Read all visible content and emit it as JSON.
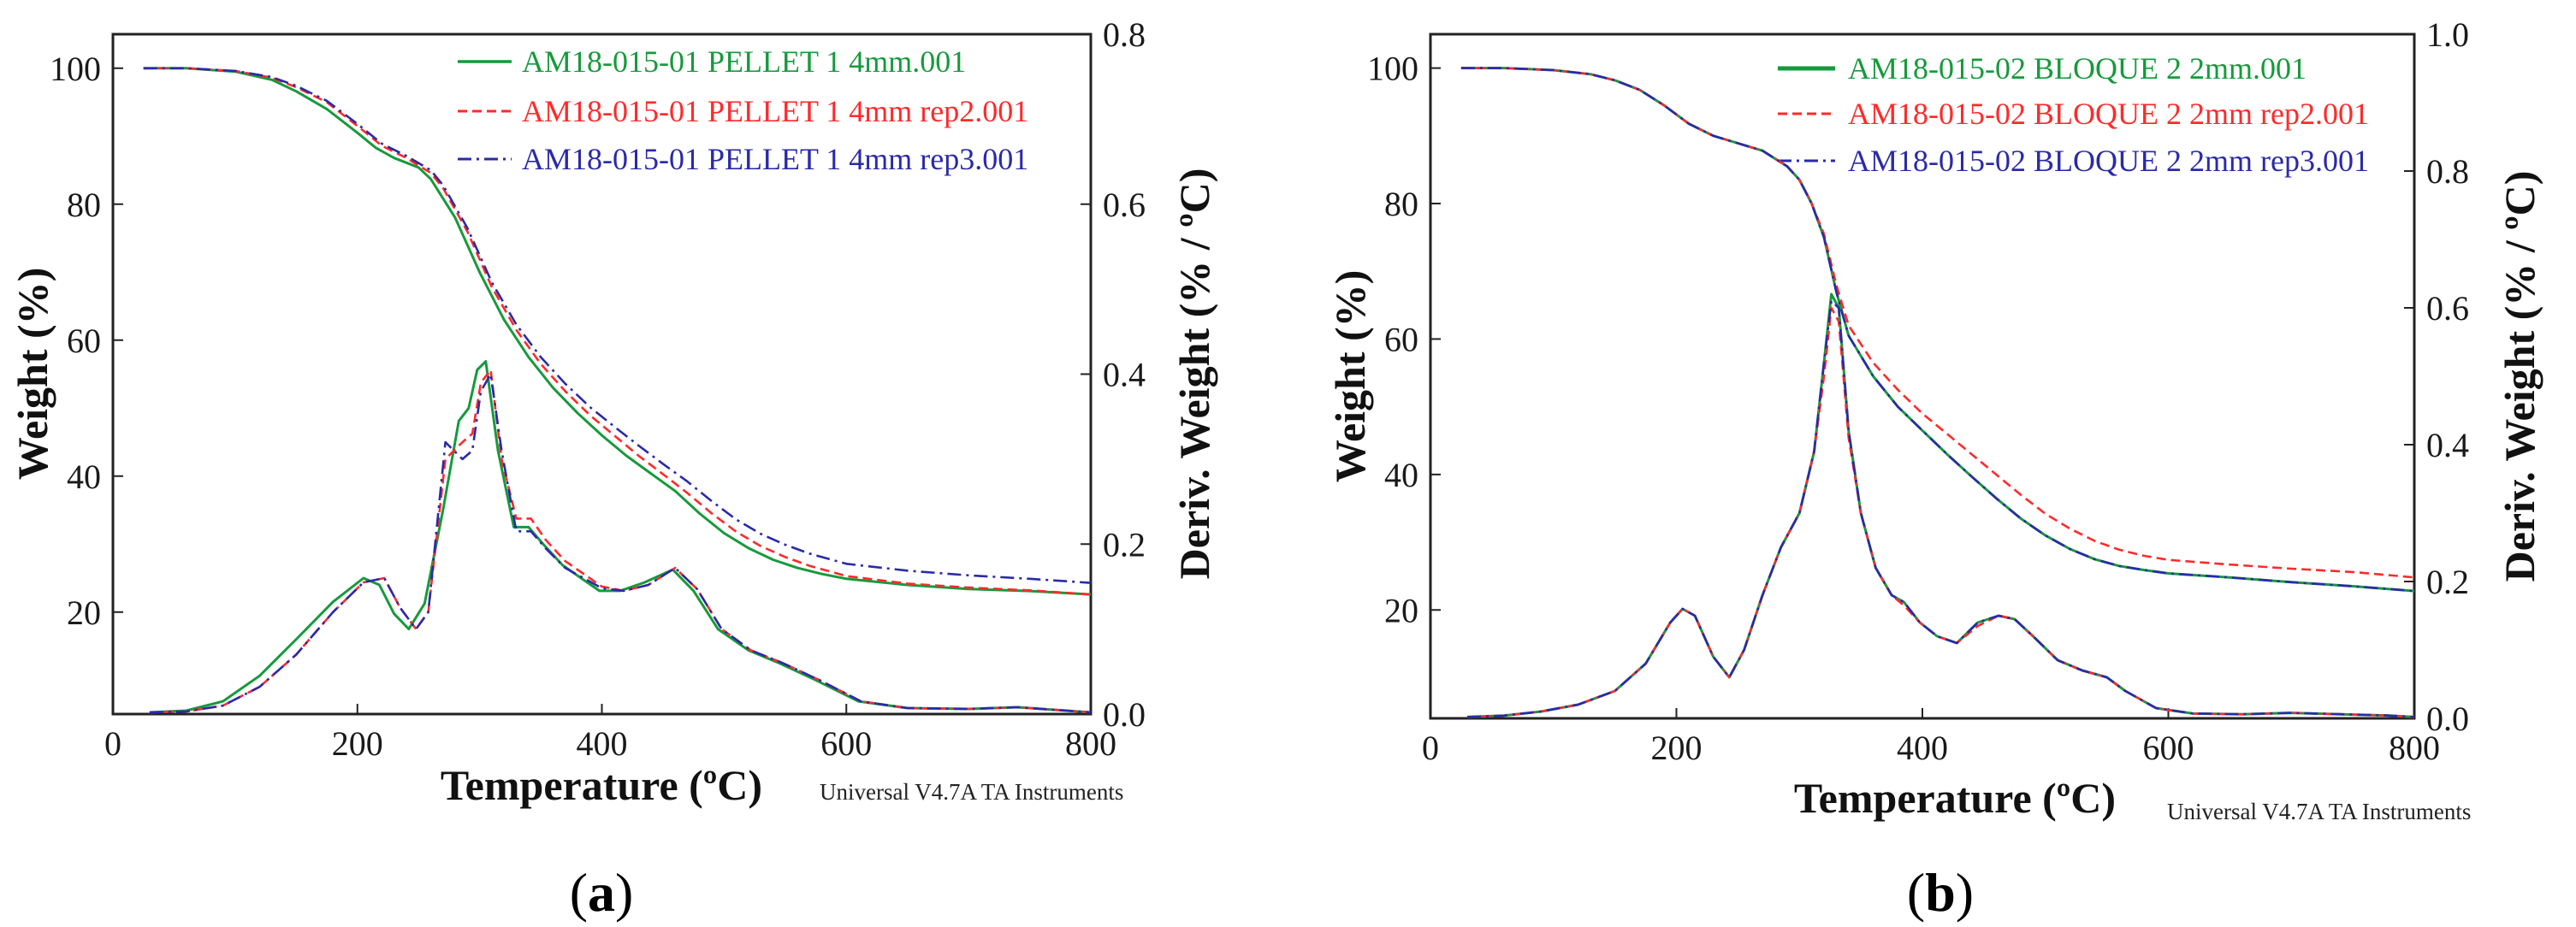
{
  "chart_data": [
    {
      "panel": "a",
      "type": "line",
      "panel_label_open": "(",
      "panel_label_letter": "a",
      "panel_label_close": ")",
      "xlabel": "Temperature (ºC)",
      "ylabel": "Weight (%)",
      "y2label": "Deriv. Weight (% / ºC)",
      "footer": "Universal V4.7A TA Instruments",
      "xlim": [
        0,
        800
      ],
      "ylim": [
        5,
        105
      ],
      "y2lim": [
        0,
        0.8
      ],
      "xticks": [
        0,
        200,
        400,
        600,
        800
      ],
      "yticks": [
        20,
        40,
        60,
        80,
        100
      ],
      "y2ticks": [
        0.0,
        0.2,
        0.4,
        0.6,
        0.8
      ],
      "y2tick_labels": [
        "0.0",
        "0.2",
        "0.4",
        "0.6",
        "0.8"
      ],
      "series": [
        {
          "name": "AM18-015-01 PELLET 1 4mm.001",
          "color": "#169a3c",
          "dash": "solid",
          "weight_x": [
            25,
            60,
            100,
            130,
            150,
            175,
            200,
            215,
            230,
            250,
            260,
            280,
            300,
            320,
            340,
            360,
            380,
            400,
            420,
            440,
            460,
            480,
            500,
            520,
            540,
            560,
            580,
            600,
            650,
            700,
            750,
            800
          ],
          "weight_y": [
            100,
            100,
            99.5,
            98.3,
            96.6,
            94,
            90.5,
            88.3,
            86.8,
            85.4,
            83.7,
            78,
            70,
            63,
            57.5,
            53,
            49.3,
            46,
            43,
            40.4,
            37.8,
            34.5,
            31.6,
            29.4,
            27.7,
            26.5,
            25.6,
            24.9,
            24,
            23.4,
            23.1,
            22.6
          ],
          "deriv_x": [
            30,
            60,
            90,
            120,
            150,
            180,
            205,
            218,
            230,
            242,
            255,
            270,
            283,
            291,
            298,
            305,
            315,
            328,
            340,
            352,
            368,
            383,
            398,
            415,
            435,
            458,
            475,
            495,
            520,
            545,
            575,
            610,
            650,
            700,
            740,
            780,
            800
          ],
          "deriv_y": [
            0.002,
            0.004,
            0.015,
            0.045,
            0.088,
            0.132,
            0.16,
            0.152,
            0.118,
            0.1,
            0.13,
            0.24,
            0.345,
            0.36,
            0.405,
            0.415,
            0.31,
            0.22,
            0.22,
            0.2,
            0.175,
            0.16,
            0.145,
            0.145,
            0.155,
            0.17,
            0.145,
            0.1,
            0.075,
            0.06,
            0.04,
            0.015,
            0.007,
            0.006,
            0.008,
            0.004,
            0.002
          ]
        },
        {
          "name": "AM18-015-01 PELLET 1 4mm rep2.001",
          "color": "#ff2a2a",
          "dash": "dashed",
          "weight_x": [
            25,
            60,
            100,
            130,
            150,
            175,
            200,
            220,
            240,
            260,
            270,
            290,
            310,
            330,
            350,
            370,
            390,
            410,
            430,
            450,
            470,
            490,
            510,
            530,
            550,
            570,
            600,
            650,
            700,
            750,
            800
          ],
          "weight_y": [
            100,
            100,
            99.6,
            98.6,
            97.2,
            95,
            91.5,
            88.6,
            86.8,
            84.6,
            82.4,
            76,
            67.8,
            61.5,
            56.5,
            52.5,
            49,
            46,
            43,
            40.3,
            37.5,
            34.5,
            31.8,
            29.7,
            28.1,
            26.8,
            25.3,
            24.2,
            23.6,
            23.2,
            22.6
          ],
          "deriv_x": [
            30,
            60,
            90,
            120,
            150,
            180,
            205,
            222,
            235,
            248,
            258,
            272,
            286,
            294,
            301,
            309,
            318,
            330,
            342,
            354,
            370,
            385,
            400,
            418,
            438,
            460,
            478,
            498,
            522,
            548,
            578,
            612,
            650,
            700,
            740,
            780,
            800
          ],
          "deriv_y": [
            0.002,
            0.003,
            0.01,
            0.032,
            0.07,
            0.12,
            0.155,
            0.16,
            0.125,
            0.1,
            0.12,
            0.3,
            0.32,
            0.33,
            0.39,
            0.405,
            0.3,
            0.23,
            0.23,
            0.205,
            0.18,
            0.165,
            0.15,
            0.145,
            0.152,
            0.172,
            0.147,
            0.1,
            0.075,
            0.06,
            0.04,
            0.015,
            0.007,
            0.006,
            0.008,
            0.004,
            0.002
          ]
        },
        {
          "name": "AM18-015-01 PELLET 1 4mm rep3.001",
          "color": "#2a2aa8",
          "dash": "dashdot",
          "weight_x": [
            25,
            60,
            100,
            130,
            150,
            175,
            200,
            220,
            240,
            260,
            270,
            290,
            310,
            330,
            350,
            370,
            390,
            410,
            430,
            450,
            470,
            490,
            510,
            530,
            550,
            570,
            600,
            650,
            700,
            750,
            800
          ],
          "weight_y": [
            100,
            100,
            99.6,
            98.7,
            97.4,
            95.2,
            91.8,
            88.9,
            87.1,
            85,
            82.8,
            76.5,
            68.5,
            62.3,
            57.5,
            53.6,
            50.2,
            47.3,
            44.5,
            41.8,
            39.2,
            36.3,
            33.6,
            31.5,
            29.9,
            28.6,
            27.1,
            26.1,
            25.4,
            24.9,
            24.3
          ],
          "deriv_x": [
            30,
            60,
            90,
            120,
            150,
            180,
            205,
            222,
            235,
            248,
            258,
            272,
            286,
            294,
            301,
            309,
            318,
            330,
            342,
            354,
            370,
            385,
            400,
            418,
            438,
            460,
            478,
            498,
            522,
            548,
            578,
            612,
            650,
            700,
            740,
            780,
            800
          ],
          "deriv_y": [
            0.002,
            0.003,
            0.01,
            0.032,
            0.07,
            0.12,
            0.155,
            0.16,
            0.125,
            0.1,
            0.12,
            0.32,
            0.3,
            0.31,
            0.38,
            0.4,
            0.31,
            0.215,
            0.215,
            0.195,
            0.172,
            0.16,
            0.148,
            0.145,
            0.152,
            0.172,
            0.147,
            0.1,
            0.075,
            0.06,
            0.04,
            0.015,
            0.007,
            0.006,
            0.008,
            0.004,
            0.002
          ]
        }
      ]
    },
    {
      "panel": "b",
      "type": "line",
      "panel_label_open": "(",
      "panel_label_letter": "b",
      "panel_label_close": ")",
      "xlabel": "Temperature (ºC)",
      "ylabel": "Weight (%)",
      "y2label": "Deriv. Weight (% / ºC)",
      "footer": "Universal V4.7A TA Instruments",
      "xlim": [
        0,
        800
      ],
      "ylim": [
        4,
        105
      ],
      "y2lim": [
        0,
        1.0
      ],
      "xticks": [
        0,
        200,
        400,
        600,
        800
      ],
      "yticks": [
        20,
        40,
        60,
        80,
        100
      ],
      "y2ticks": [
        0.0,
        0.2,
        0.4,
        0.6,
        0.8,
        1.0
      ],
      "y2tick_labels": [
        "0.0",
        "0.2",
        "0.4",
        "0.6",
        "0.8",
        "1.0"
      ],
      "series": [
        {
          "name": "AM18-015-02 BLOQUE 2 2mm.001",
          "color": "#169a3c",
          "dash": "solid",
          "weight_x": [
            25,
            60,
            100,
            130,
            150,
            170,
            190,
            210,
            230,
            250,
            270,
            290,
            300,
            310,
            320,
            330,
            340,
            360,
            380,
            400,
            420,
            440,
            460,
            480,
            500,
            520,
            540,
            560,
            580,
            600,
            650,
            700,
            750,
            800
          ],
          "weight_y": [
            100,
            100,
            99.7,
            99.1,
            98.2,
            96.8,
            94.5,
            91.8,
            90,
            88.9,
            87.8,
            85.5,
            83.5,
            80,
            75,
            67,
            60.5,
            54.5,
            50,
            46.5,
            43,
            39.7,
            36.5,
            33.5,
            31,
            29,
            27.5,
            26.5,
            25.9,
            25.4,
            24.8,
            24.1,
            23.5,
            22.8
          ],
          "deriv_x": [
            30,
            60,
            90,
            120,
            150,
            175,
            195,
            205,
            215,
            230,
            243,
            255,
            270,
            285,
            300,
            312,
            320,
            326,
            332,
            340,
            350,
            362,
            375,
            385,
            398,
            412,
            428,
            445,
            462,
            475,
            490,
            510,
            530,
            550,
            565,
            590,
            620,
            660,
            700,
            740,
            780,
            800
          ],
          "deriv_y": [
            0.002,
            0.004,
            0.01,
            0.02,
            0.04,
            0.08,
            0.14,
            0.16,
            0.15,
            0.09,
            0.06,
            0.1,
            0.18,
            0.25,
            0.3,
            0.39,
            0.52,
            0.62,
            0.6,
            0.42,
            0.3,
            0.22,
            0.18,
            0.17,
            0.14,
            0.12,
            0.11,
            0.14,
            0.15,
            0.145,
            0.12,
            0.085,
            0.07,
            0.06,
            0.04,
            0.015,
            0.007,
            0.006,
            0.008,
            0.006,
            0.004,
            0.002
          ]
        },
        {
          "name": "AM18-015-02 BLOQUE 2 2mm rep2.001",
          "color": "#ff2a2a",
          "dash": "dashed",
          "weight_x": [
            25,
            60,
            100,
            130,
            150,
            170,
            190,
            210,
            230,
            250,
            270,
            290,
            300,
            310,
            320,
            330,
            340,
            360,
            380,
            400,
            420,
            440,
            460,
            480,
            500,
            520,
            540,
            560,
            580,
            600,
            650,
            700,
            750,
            800
          ],
          "weight_y": [
            100,
            100,
            99.7,
            99.1,
            98.2,
            96.8,
            94.5,
            91.8,
            90,
            88.9,
            87.8,
            85.5,
            83.5,
            80,
            75.5,
            68,
            62,
            56.5,
            52.5,
            49,
            46,
            43,
            40,
            37,
            34.2,
            32,
            30.2,
            28.9,
            28,
            27.4,
            26.7,
            26.1,
            25.6,
            24.8
          ],
          "deriv_x": [
            30,
            60,
            90,
            120,
            150,
            175,
            195,
            205,
            215,
            230,
            243,
            255,
            270,
            285,
            300,
            312,
            320,
            326,
            332,
            340,
            350,
            362,
            375,
            385,
            398,
            412,
            428,
            445,
            462,
            475,
            490,
            510,
            530,
            550,
            565,
            590,
            620,
            660,
            700,
            740,
            780,
            800
          ],
          "deriv_y": [
            0.002,
            0.004,
            0.01,
            0.02,
            0.04,
            0.08,
            0.14,
            0.16,
            0.15,
            0.09,
            0.06,
            0.1,
            0.18,
            0.25,
            0.3,
            0.39,
            0.5,
            0.6,
            0.58,
            0.41,
            0.3,
            0.22,
            0.18,
            0.165,
            0.14,
            0.12,
            0.11,
            0.135,
            0.15,
            0.145,
            0.12,
            0.085,
            0.07,
            0.06,
            0.04,
            0.015,
            0.007,
            0.006,
            0.008,
            0.006,
            0.004,
            0.002
          ]
        },
        {
          "name": "AM18-015-02 BLOQUE 2 2mm rep3.001",
          "color": "#2a2aa8",
          "dash": "dashdot",
          "weight_x": [
            25,
            60,
            100,
            130,
            150,
            170,
            190,
            210,
            230,
            250,
            270,
            290,
            300,
            310,
            320,
            330,
            340,
            360,
            380,
            400,
            420,
            440,
            460,
            480,
            500,
            520,
            540,
            560,
            580,
            600,
            650,
            700,
            750,
            800
          ],
          "weight_y": [
            100,
            100,
            99.7,
            99.1,
            98.2,
            96.8,
            94.5,
            91.8,
            90,
            88.9,
            87.8,
            85.5,
            83.5,
            80,
            75,
            67,
            60.5,
            54.5,
            50,
            46.5,
            43,
            39.7,
            36.5,
            33.5,
            31,
            29,
            27.5,
            26.5,
            25.9,
            25.4,
            24.8,
            24.1,
            23.5,
            22.8
          ],
          "deriv_x": [
            30,
            60,
            90,
            120,
            150,
            175,
            195,
            205,
            215,
            230,
            243,
            255,
            270,
            285,
            300,
            312,
            320,
            326,
            332,
            340,
            350,
            362,
            375,
            385,
            398,
            412,
            428,
            445,
            462,
            475,
            490,
            510,
            530,
            550,
            565,
            590,
            620,
            660,
            700,
            740,
            780,
            800
          ],
          "deriv_y": [
            0.002,
            0.004,
            0.01,
            0.02,
            0.04,
            0.08,
            0.14,
            0.16,
            0.15,
            0.09,
            0.06,
            0.1,
            0.18,
            0.25,
            0.3,
            0.39,
            0.52,
            0.61,
            0.6,
            0.42,
            0.3,
            0.22,
            0.18,
            0.17,
            0.14,
            0.12,
            0.11,
            0.14,
            0.15,
            0.145,
            0.12,
            0.085,
            0.07,
            0.06,
            0.04,
            0.015,
            0.007,
            0.006,
            0.008,
            0.006,
            0.004,
            0.002
          ]
        }
      ]
    }
  ]
}
